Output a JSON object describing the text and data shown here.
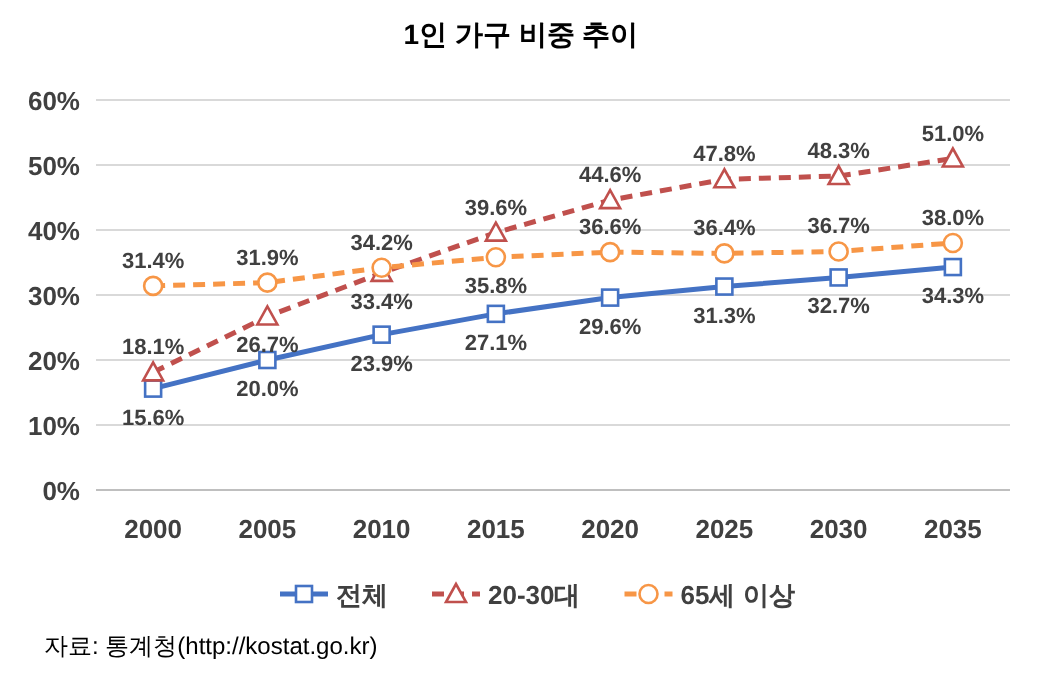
{
  "chart_data": {
    "type": "line",
    "title": "1인 가구 비중 추이",
    "categories": [
      "2000",
      "2005",
      "2010",
      "2015",
      "2020",
      "2025",
      "2030",
      "2035"
    ],
    "ylim": [
      0,
      60
    ],
    "yticks": [
      {
        "value": 0,
        "label": "0%"
      },
      {
        "value": 10,
        "label": "10%"
      },
      {
        "value": 20,
        "label": "20%"
      },
      {
        "value": 30,
        "label": "30%"
      },
      {
        "value": 40,
        "label": "40%"
      },
      {
        "value": 50,
        "label": "50%"
      },
      {
        "value": 60,
        "label": "60%"
      }
    ],
    "grid": "y",
    "legend": "bottom",
    "series": [
      {
        "name": "전체",
        "color": "#4472c4",
        "marker": "square",
        "line_style": "solid",
        "values": [
          15.6,
          20.0,
          23.9,
          27.1,
          29.6,
          31.3,
          32.7,
          34.3
        ],
        "value_labels": [
          "15.6%",
          "20.0%",
          "23.9%",
          "27.1%",
          "29.6%",
          "31.3%",
          "32.7%",
          "34.3%"
        ]
      },
      {
        "name": "20-30대",
        "color": "#c0504d",
        "marker": "triangle",
        "line_style": "dashed",
        "values": [
          18.1,
          26.7,
          33.4,
          39.6,
          44.6,
          47.8,
          48.3,
          51.0
        ],
        "value_labels": [
          "18.1%",
          "26.7%",
          "33.4%",
          "39.6%",
          "44.6%",
          "47.8%",
          "48.3%",
          "51.0%"
        ]
      },
      {
        "name": "65세 이상",
        "color": "#f79646",
        "marker": "circle",
        "line_style": "dashed",
        "values": [
          31.4,
          31.9,
          34.2,
          35.8,
          36.6,
          36.4,
          36.7,
          38.0
        ],
        "value_labels": [
          "31.4%",
          "31.9%",
          "34.2%",
          "35.8%",
          "36.6%",
          "36.4%",
          "36.7%",
          "38.0%"
        ]
      }
    ],
    "annotations": [
      "자료: 통계청(http://kostat.go.kr)"
    ]
  }
}
